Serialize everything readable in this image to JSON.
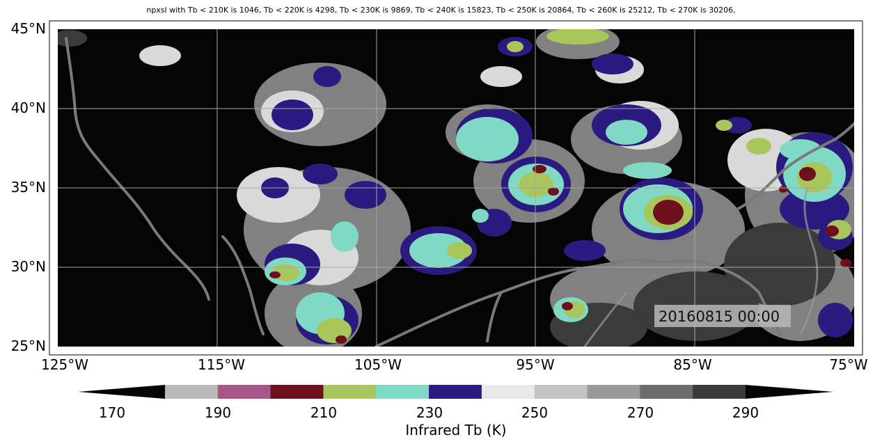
{
  "title": "npxsl with Tb < 210K is 1046,  Tb < 220K is 4298,  Tb < 230K is 9869,  Tb < 240K is 15823,  Tb < 250K is 20864,  Tb < 260K is 25212,  Tb < 270K is 30206,",
  "timestamp": "20160815 00:00",
  "map": {
    "lon_range": [
      -125,
      -75
    ],
    "lat_range": [
      25,
      45
    ],
    "x_ticks": [
      "125°W",
      "115°W",
      "105°W",
      "95°W",
      "85°W",
      "75°W"
    ],
    "y_ticks": [
      "45°N",
      "40°N",
      "35°N",
      "30°N",
      "25°N"
    ],
    "grid": true,
    "background_color": "#050505",
    "coastline_color": "#7a7a7a"
  },
  "colorbar": {
    "label": "Infrared Tb (K)",
    "tick_labels": [
      "170",
      "190",
      "210",
      "230",
      "250",
      "270",
      "290"
    ],
    "extend": "both",
    "colors": [
      "#050505",
      "#b9b9b9",
      "#a8568a",
      "#6e0f1e",
      "#a8c65c",
      "#7fd9c4",
      "#2b1b80",
      "#e8e8e8",
      "#c3c3c3",
      "#999999",
      "#6c6c6c",
      "#3a3a3a",
      "#050505"
    ]
  }
}
